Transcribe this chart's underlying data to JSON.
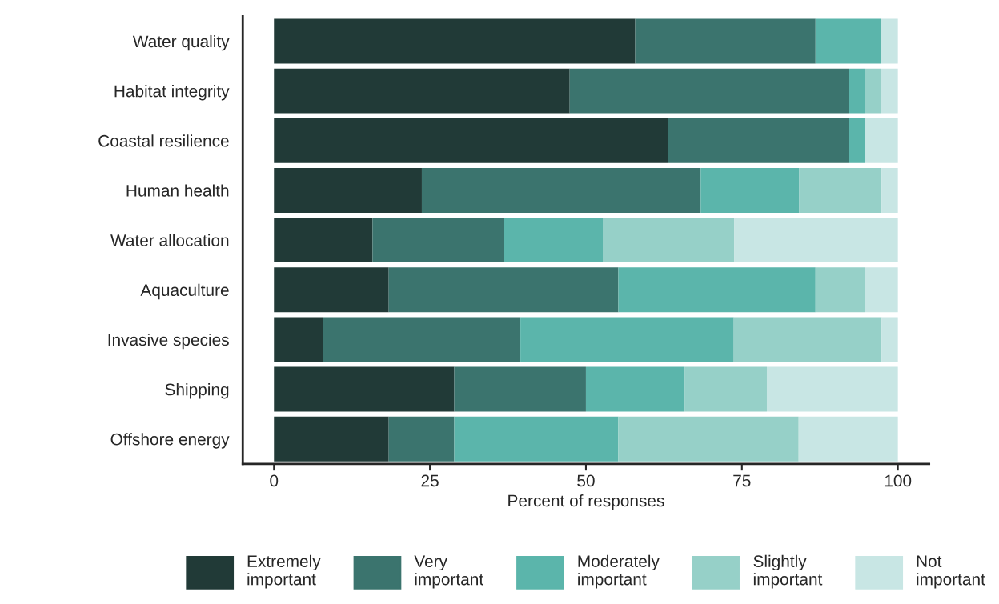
{
  "chart_data": {
    "type": "bar",
    "orientation": "horizontal",
    "stacked": true,
    "xlabel": "Percent of responses",
    "categories": [
      "Water quality",
      "Habitat integrity",
      "Coastal resilience",
      "Human health",
      "Water allocation",
      "Aquaculture",
      "Invasive species",
      "Shipping",
      "Offshore energy"
    ],
    "series": [
      {
        "name": "Extremely\nimportant",
        "color": "#213a37",
        "values": [
          57.9,
          47.4,
          63.2,
          23.7,
          15.8,
          18.4,
          7.9,
          28.9,
          18.4
        ]
      },
      {
        "name": "Very\nimportant",
        "color": "#3b746e",
        "values": [
          28.9,
          44.7,
          28.9,
          44.7,
          21.1,
          36.8,
          31.6,
          21.1,
          10.5
        ]
      },
      {
        "name": "Moderately\nimportant",
        "color": "#5bb5ab",
        "values": [
          10.5,
          2.6,
          2.6,
          15.8,
          15.8,
          31.6,
          34.2,
          15.8,
          26.3
        ]
      },
      {
        "name": "Slightly\nimportant",
        "color": "#96d0c8",
        "values": [
          0,
          2.6,
          0,
          13.2,
          21.1,
          7.9,
          23.7,
          13.2,
          28.9
        ]
      },
      {
        "name": "Not\nimportant",
        "color": "#c8e6e4",
        "values": [
          2.7,
          2.7,
          5.3,
          2.6,
          26.2,
          5.3,
          2.6,
          21.0,
          15.9
        ]
      }
    ],
    "xlim": [
      -5,
      105
    ],
    "xticks": [
      0,
      25,
      50,
      75,
      100
    ],
    "grid": false,
    "legend": "bottom"
  }
}
